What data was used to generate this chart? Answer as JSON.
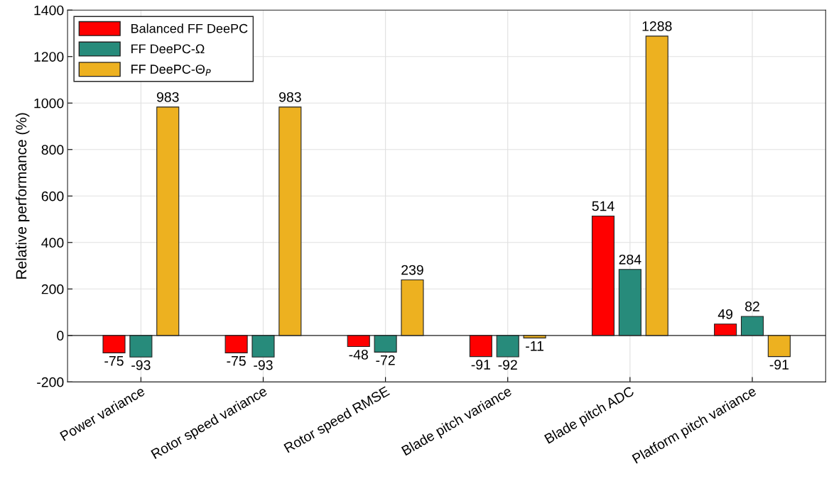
{
  "chart_data": {
    "type": "bar",
    "ylabel": "Relative performance (%)",
    "categories": [
      "Power variance",
      "Rotor speed variance",
      "Rotor speed RMSE",
      "Blade pitch variance",
      "Blade pitch ADC",
      "Platform pitch variance"
    ],
    "series": [
      {
        "name": "Balanced FF DeePC",
        "color": "#ff0000",
        "values": [
          -75,
          -75,
          -48,
          -91,
          514,
          49
        ]
      },
      {
        "name": "FF DeePC-Ω",
        "color": "#278b7b",
        "values": [
          -93,
          -93,
          -72,
          -92,
          284,
          82
        ]
      },
      {
        "name": "FF DeePC-Θ$_{P}$",
        "color": "#edb120",
        "values": [
          983,
          983,
          239,
          -11,
          1288,
          -91
        ]
      }
    ],
    "ylim": [
      -200,
      1400
    ],
    "yticks": [
      -200,
      0,
      200,
      400,
      600,
      800,
      1000,
      1200,
      1400
    ],
    "grid": true,
    "legend": "top left",
    "data_labels": true
  }
}
